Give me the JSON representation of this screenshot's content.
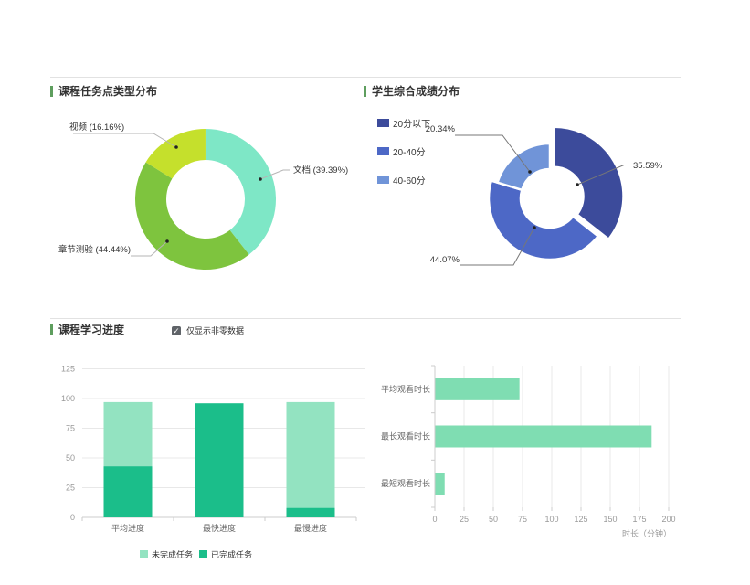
{
  "sections": {
    "task_types": {
      "title": "课程任务点类型分布"
    },
    "score_distribution": {
      "title": "学生综合成绩分布"
    },
    "learning_progress": {
      "title": "课程学习进度",
      "filter_checkbox": {
        "label": "仅显示非零数据",
        "checked": true
      }
    }
  },
  "colors": {
    "accent_marker_green": "#5E9E5E",
    "divider": "#e2e2e2",
    "axis_line": "#cccccc",
    "grid_line": "#e8e8e8",
    "tick_label": "#999999",
    "category_label": "#666666",
    "pie_label": "#333333",
    "checkbox": "#5f6368"
  },
  "chart_data": [
    {
      "id": "task-type-distribution",
      "type": "pie",
      "subtype": "donut",
      "title": "课程任务点类型分布",
      "start_angle": "top",
      "direction": "clockwise",
      "slices": [
        {
          "label": "文档",
          "value": 39.39,
          "display": "文档 (39.39%)",
          "color": "#7EE7C6"
        },
        {
          "label": "章节测验",
          "value": 44.44,
          "display": "章节测验 (44.44%)",
          "color": "#7EC43E"
        },
        {
          "label": "视频",
          "value": 16.16,
          "display": "视频 (16.16%)",
          "color": "#C5E02C"
        }
      ]
    },
    {
      "id": "score-distribution",
      "type": "pie",
      "subtype": "rose-donut",
      "title": "学生综合成绩分布",
      "legend_position": "top-left",
      "legend": [
        "20分以下",
        "20-40分",
        "40-60分"
      ],
      "slices": [
        {
          "label": "20分以下",
          "value": 35.59,
          "display": "35.59%",
          "color": "#3C4B9B"
        },
        {
          "label": "20-40分",
          "value": 44.07,
          "display": "44.07%",
          "color": "#4D68C6"
        },
        {
          "label": "40-60分",
          "value": 20.34,
          "display": "20.34%",
          "color": "#7094D8"
        }
      ]
    },
    {
      "id": "learning-progress",
      "type": "bar",
      "subtype": "stacked-vertical",
      "title": "课程学习进度",
      "categories": [
        "平均进度",
        "最快进度",
        "最慢进度"
      ],
      "series": [
        {
          "name": "已完成任务",
          "color": "#1BBE8A",
          "values": [
            43,
            96,
            8
          ]
        },
        {
          "name": "未完成任务",
          "color": "#93E3C1",
          "values": [
            54,
            0,
            89
          ]
        }
      ],
      "legend_order": [
        "未完成任务",
        "已完成任务"
      ],
      "ylim": [
        0,
        125
      ],
      "yticks": [
        0,
        25,
        50,
        75,
        100,
        125
      ],
      "grid": true,
      "legend_position": "bottom"
    },
    {
      "id": "watch-duration",
      "type": "bar",
      "subtype": "horizontal",
      "categories": [
        "平均观看时长",
        "最长观看时长",
        "最短观看时长"
      ],
      "values": [
        72,
        185,
        8
      ],
      "color": "#7FDDB2",
      "xlim": [
        0,
        200
      ],
      "xticks": [
        0,
        25,
        50,
        75,
        100,
        125,
        150,
        175,
        200
      ],
      "xlabel": "时长（分钟）",
      "grid": true
    }
  ]
}
